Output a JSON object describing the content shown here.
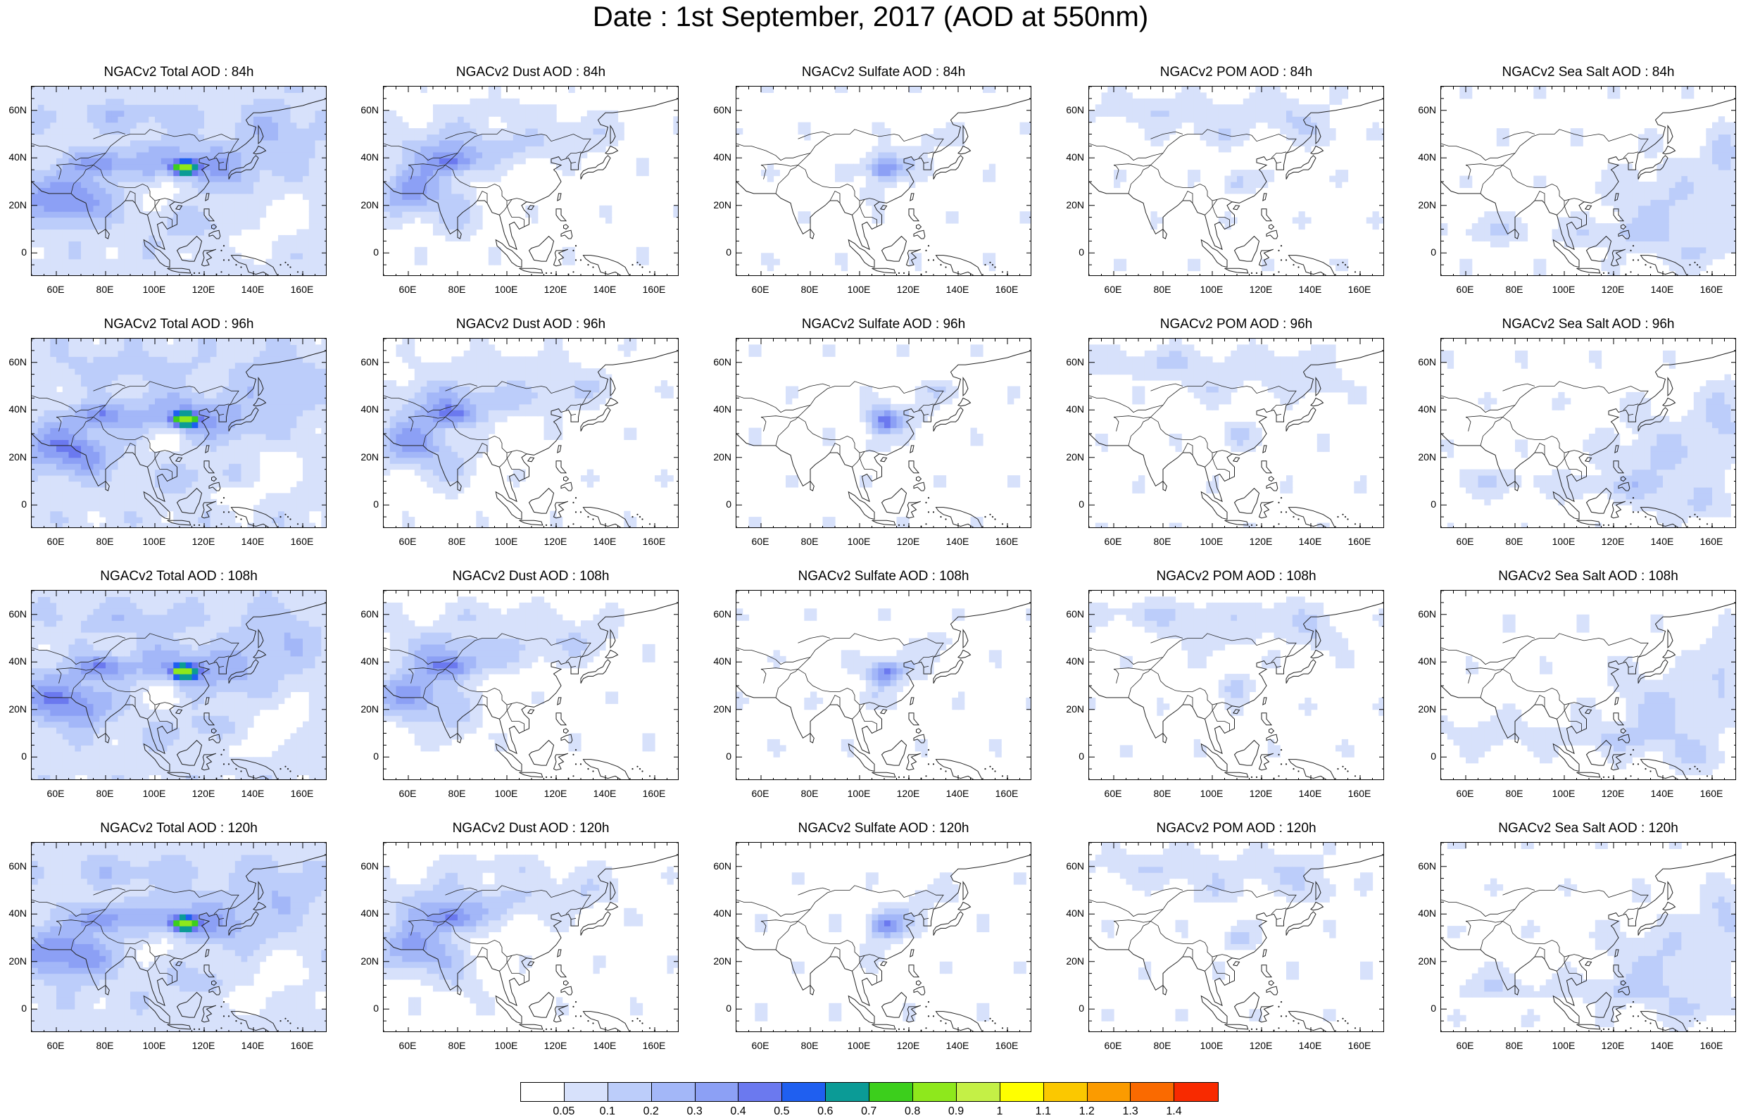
{
  "title": "Date : 1st September, 2017 (AOD at 550nm)",
  "y_ticks": [
    "60N",
    "40N",
    "20N",
    "0"
  ],
  "x_ticks": [
    "60E",
    "80E",
    "100E",
    "120E",
    "140E",
    "160E"
  ],
  "panels": [
    {
      "title": "NGACv2 Total AOD : 84h",
      "species": "total"
    },
    {
      "title": "NGACv2 Dust AOD : 84h",
      "species": "dust"
    },
    {
      "title": "NGACv2 Sulfate AOD : 84h",
      "species": "sulfate"
    },
    {
      "title": "NGACv2 POM AOD : 84h",
      "species": "pom"
    },
    {
      "title": "NGACv2 Sea Salt AOD : 84h",
      "species": "seasalt"
    },
    {
      "title": "NGACv2 Total AOD : 96h",
      "species": "total"
    },
    {
      "title": "NGACv2 Dust AOD : 96h",
      "species": "dust"
    },
    {
      "title": "NGACv2 Sulfate AOD : 96h",
      "species": "sulfate"
    },
    {
      "title": "NGACv2 POM AOD : 96h",
      "species": "pom"
    },
    {
      "title": "NGACv2 Sea Salt AOD : 96h",
      "species": "seasalt"
    },
    {
      "title": "NGACv2 Total AOD : 108h",
      "species": "total"
    },
    {
      "title": "NGACv2 Dust AOD : 108h",
      "species": "dust"
    },
    {
      "title": "NGACv2 Sulfate AOD : 108h",
      "species": "sulfate"
    },
    {
      "title": "NGACv2 POM AOD : 108h",
      "species": "pom"
    },
    {
      "title": "NGACv2 Sea Salt AOD : 108h",
      "species": "seasalt"
    },
    {
      "title": "NGACv2 Total AOD : 120h",
      "species": "total"
    },
    {
      "title": "NGACv2 Dust AOD : 120h",
      "species": "dust"
    },
    {
      "title": "NGACv2 Sulfate AOD : 120h",
      "species": "sulfate"
    },
    {
      "title": "NGACv2 POM AOD : 120h",
      "species": "pom"
    },
    {
      "title": "NGACv2 Sea Salt  AOD : 120h",
      "species": "seasalt"
    }
  ],
  "colorbar": {
    "colors": [
      "#ffffff",
      "#d7e1fb",
      "#bccdfa",
      "#a3b7f8",
      "#8ca0f5",
      "#6b79ef",
      "#1f5ff0",
      "#0b9b96",
      "#3ccf1c",
      "#8ee81c",
      "#c4f046",
      "#ffff00",
      "#fbc800",
      "#fb9b00",
      "#fa6a00",
      "#f82a00"
    ],
    "labels": [
      "0.05",
      "0.1",
      "0.2",
      "0.3",
      "0.4",
      "0.5",
      "0.6",
      "0.7",
      "0.8",
      "0.9",
      "1",
      "1.1",
      "1.2",
      "1.3",
      "1.4"
    ]
  }
}
